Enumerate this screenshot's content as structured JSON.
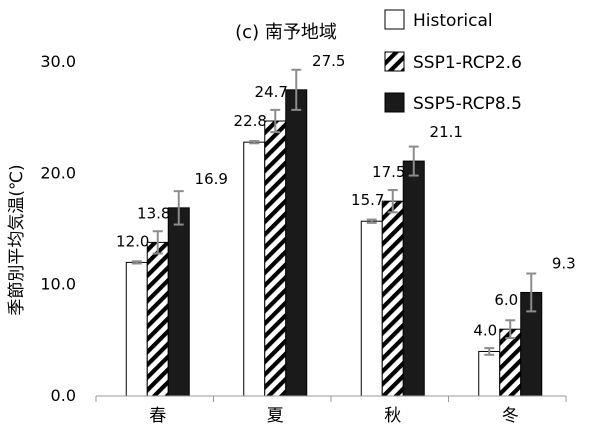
{
  "chart_data": {
    "type": "bar",
    "title": "(c) 南予地域",
    "ylabel": "季節別平均気温(℃)",
    "xlabel": "",
    "categories": [
      "春",
      "夏",
      "秋",
      "冬"
    ],
    "ylim": [
      0,
      30
    ],
    "yticks": [
      0,
      10,
      20,
      30
    ],
    "ytick_labels": [
      "0.0",
      "10.0",
      "20.0",
      "30.0"
    ],
    "grid": false,
    "legend_position": "top-right",
    "series": [
      {
        "name": "Historical",
        "values": [
          12.0,
          22.8,
          15.7,
          4.0
        ],
        "labels": [
          "12.0",
          "22.8",
          "15.7",
          "4.0"
        ],
        "errors": [
          0.1,
          0.1,
          0.15,
          0.3
        ],
        "fill": "white",
        "color": "#ffffff"
      },
      {
        "name": "SSP1-RCP2.6",
        "values": [
          13.8,
          24.7,
          17.5,
          6.0
        ],
        "labels": [
          "13.8",
          "24.7",
          "17.5",
          "6.0"
        ],
        "errors": [
          1.0,
          1.0,
          1.0,
          0.8
        ],
        "fill": "hatch",
        "color": "#000000"
      },
      {
        "name": "SSP5-RCP8.5",
        "values": [
          16.9,
          27.5,
          21.1,
          9.3
        ],
        "labels": [
          "16.9",
          "27.5",
          "21.1",
          "9.3"
        ],
        "errors": [
          1.5,
          1.8,
          1.3,
          1.7
        ],
        "fill": "solid",
        "color": "#1a1a1a"
      }
    ],
    "colors": {
      "error_bar": "#8c8c8c",
      "axis": "#999999"
    }
  }
}
